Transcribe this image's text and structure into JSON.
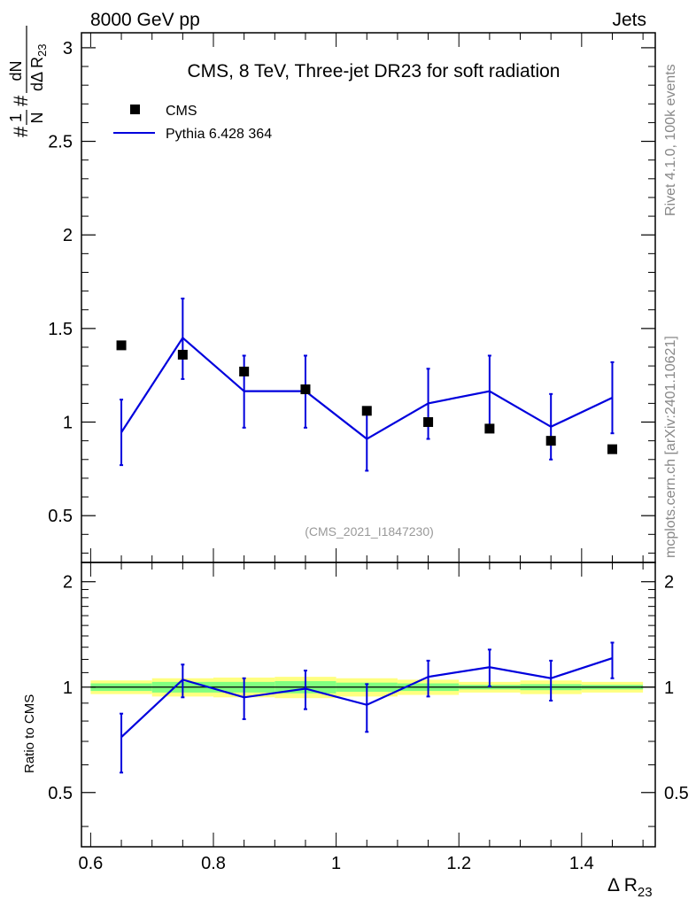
{
  "header": {
    "left": "8000 GeV pp",
    "right": "Jets"
  },
  "side_labels": {
    "rivet": "Rivet 4.1.0,  100k events",
    "mcplots": "mcplots.cern.ch [arXiv:2401.10621]"
  },
  "colors": {
    "data": "#000000",
    "mc": "#0000dd",
    "band_outer": "#ffff80",
    "band_inner": "#80ff80",
    "ratio_line": "#008000",
    "watermark": "#999999"
  },
  "chart_data": [
    {
      "id": "main",
      "type": "scatter",
      "title": "CMS, 8 TeV, Three-jet DR23 for soft radiation",
      "ylabel": "#1/N #dN/dΔ R23",
      "ylim": [
        0.25,
        3.08
      ],
      "yticks": [
        0.5,
        1,
        1.5,
        2,
        2.5,
        3
      ],
      "ytick_labels": [
        "0.5",
        "1",
        "1.5",
        "2",
        "2.5",
        "3"
      ],
      "watermark": "(CMS_2021_I1847230)",
      "legend": [
        "CMS",
        "Pythia 6.428 364"
      ],
      "series": [
        {
          "name": "CMS",
          "kind": "markers",
          "x": [
            0.65,
            0.75,
            0.85,
            0.95,
            1.05,
            1.15,
            1.25,
            1.35,
            1.45
          ],
          "y": [
            1.41,
            1.36,
            1.27,
            1.175,
            1.06,
            1.0,
            0.965,
            0.9,
            0.855
          ]
        },
        {
          "name": "Pythia 6.428 364",
          "kind": "line",
          "x": [
            0.65,
            0.75,
            0.85,
            0.95,
            1.05,
            1.15,
            1.25,
            1.35,
            1.45
          ],
          "y": [
            0.945,
            1.45,
            1.165,
            1.165,
            0.91,
            1.1,
            1.165,
            0.975,
            1.13
          ],
          "err_low": [
            0.77,
            1.23,
            0.97,
            0.97,
            0.74,
            0.91,
            0.97,
            0.8,
            0.94
          ],
          "err_high": [
            1.12,
            1.66,
            1.355,
            1.355,
            1.06,
            1.285,
            1.355,
            1.15,
            1.32
          ]
        }
      ]
    },
    {
      "id": "ratio",
      "type": "line",
      "ylabel": "Ratio to CMS",
      "xlabel": "Δ R23",
      "xlim": [
        0.585,
        1.52
      ],
      "xticks": [
        0.6,
        0.8,
        1.0,
        1.2,
        1.4
      ],
      "xtick_labels": [
        "0.6",
        "0.8",
        "1",
        "1.2",
        "1.4"
      ],
      "ylim": [
        0.35,
        2.27
      ],
      "yticks": [
        0.5,
        1,
        2
      ],
      "ytick_labels": [
        "0.5",
        "1",
        "2"
      ],
      "bands": {
        "x_edges": [
          0.6,
          0.7,
          0.8,
          0.9,
          1.0,
          1.1,
          1.2,
          1.3,
          1.4,
          1.5
        ],
        "outer_half": [
          0.045,
          0.06,
          0.065,
          0.07,
          0.06,
          0.05,
          0.035,
          0.045,
          0.035
        ],
        "inner_half": [
          0.025,
          0.035,
          0.035,
          0.04,
          0.03,
          0.025,
          0.015,
          0.02,
          0.015
        ]
      },
      "series": [
        {
          "name": "Pythia 6.428 364",
          "x": [
            0.65,
            0.75,
            0.85,
            0.95,
            1.05,
            1.15,
            1.25,
            1.35,
            1.45
          ],
          "y": [
            0.72,
            1.05,
            0.935,
            0.99,
            0.89,
            1.07,
            1.14,
            1.06,
            1.21
          ],
          "err_low": [
            0.57,
            0.935,
            0.81,
            0.865,
            0.745,
            0.94,
            1.005,
            0.915,
            1.06
          ],
          "err_high": [
            0.84,
            1.16,
            1.06,
            1.115,
            1.02,
            1.19,
            1.28,
            1.19,
            1.34
          ]
        }
      ]
    }
  ]
}
